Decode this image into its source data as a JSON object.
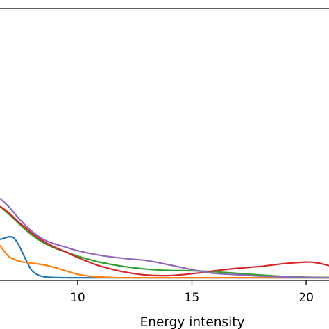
{
  "chart_data": {
    "type": "line",
    "xlabel": "Energy intensity",
    "ylabel": "",
    "x_ticks": [
      10,
      15,
      20
    ],
    "xlim": [
      6.6,
      21.0
    ],
    "ylim": [
      -0.01,
      1.0
    ],
    "grid": false,
    "series": [
      {
        "color": "#1f77b4",
        "x": [
          6.6,
          6.8,
          7.0,
          7.2,
          7.4,
          7.6,
          7.8,
          8.0,
          8.3,
          8.6,
          9.0,
          10,
          12,
          15,
          18,
          21
        ],
        "y": [
          0.142,
          0.147,
          0.152,
          0.148,
          0.124,
          0.09,
          0.055,
          0.026,
          0.009,
          0.003,
          0.001,
          0.0,
          0.0,
          0.0,
          0.0,
          0.0
        ]
      },
      {
        "color": "#ff7f0e",
        "x": [
          6.6,
          6.8,
          7.0,
          7.2,
          7.5,
          8.0,
          8.5,
          9.0,
          9.5,
          10.0,
          10.5,
          11.0,
          11.5,
          12.0,
          13.0,
          15.0,
          18.0,
          21.0
        ],
        "y": [
          0.12,
          0.096,
          0.078,
          0.069,
          0.06,
          0.054,
          0.048,
          0.038,
          0.025,
          0.013,
          0.006,
          0.003,
          0.001,
          0.0,
          0.0,
          0.0,
          0.0,
          0.0
        ]
      },
      {
        "color": "#2ca02c",
        "x": [
          6.6,
          7.0,
          7.5,
          8.0,
          8.5,
          9.0,
          9.5,
          10.0,
          10.5,
          11.0,
          12.0,
          13.0,
          14.0,
          15.0,
          16.0,
          17.0,
          18.0,
          19.0,
          20.0,
          21.0
        ],
        "y": [
          0.265,
          0.235,
          0.195,
          0.158,
          0.13,
          0.11,
          0.095,
          0.08,
          0.068,
          0.057,
          0.042,
          0.032,
          0.027,
          0.026,
          0.022,
          0.016,
          0.01,
          0.005,
          0.002,
          0.001
        ]
      },
      {
        "color": "#d62728",
        "x": [
          6.6,
          7.0,
          7.5,
          8.0,
          8.5,
          9.0,
          9.5,
          10.0,
          10.5,
          11.0,
          12.0,
          13.0,
          14.0,
          15.0,
          15.5,
          16.0,
          17.0,
          18.0,
          19.0,
          20.0,
          20.5,
          21.0
        ],
        "y": [
          0.265,
          0.24,
          0.2,
          0.165,
          0.135,
          0.113,
          0.095,
          0.075,
          0.058,
          0.043,
          0.022,
          0.01,
          0.008,
          0.015,
          0.02,
          0.026,
          0.035,
          0.042,
          0.052,
          0.058,
          0.055,
          0.045
        ]
      },
      {
        "color": "#9467bd",
        "x": [
          6.6,
          7.0,
          7.5,
          8.0,
          8.5,
          9.0,
          9.5,
          10.0,
          11.0,
          12.0,
          13.0,
          14.0,
          15.0,
          15.5,
          16.0,
          17.0,
          18.0,
          19.0,
          20.0,
          21.0
        ],
        "y": [
          0.295,
          0.262,
          0.213,
          0.172,
          0.142,
          0.125,
          0.113,
          0.1,
          0.083,
          0.072,
          0.064,
          0.048,
          0.03,
          0.022,
          0.016,
          0.011,
          0.006,
          0.003,
          0.001,
          0.0
        ]
      }
    ]
  }
}
